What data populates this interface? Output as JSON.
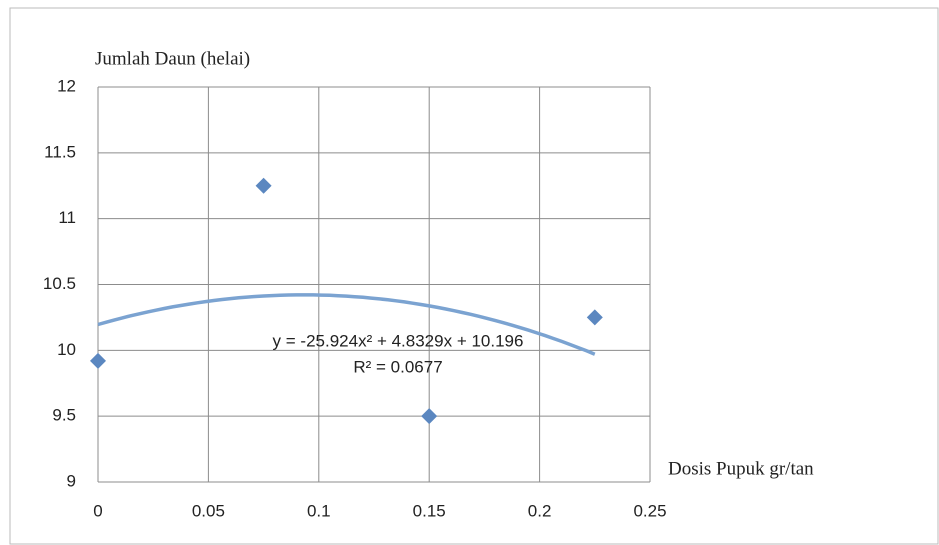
{
  "chart_data": {
    "type": "scatter",
    "y_axis_label": "Jumlah Daun (helai)",
    "x_axis_label": "Dosis Pupuk gr/tan",
    "series": [
      {
        "color": "#5b87c0",
        "x": [
          0,
          0.075,
          0.15,
          0.225
        ],
        "values": [
          9.92,
          11.25,
          9.5,
          10.25
        ]
      }
    ],
    "trendline": {
      "type": "polynomial",
      "color": "#7ba3d1",
      "coefficients": [
        -25.924,
        4.8329,
        10.196
      ],
      "equation": "y = -25.924x² + 4.8329x + 10.196",
      "r_squared_label": "R² = 0.0677"
    },
    "xlim": [
      0,
      0.25
    ],
    "xticks": [
      0,
      0.05,
      0.1,
      0.15,
      0.2,
      0.25
    ],
    "ylim": [
      9,
      12
    ],
    "yticks": [
      9,
      9.5,
      10,
      10.5,
      11,
      11.5,
      12
    ],
    "grid": true
  }
}
